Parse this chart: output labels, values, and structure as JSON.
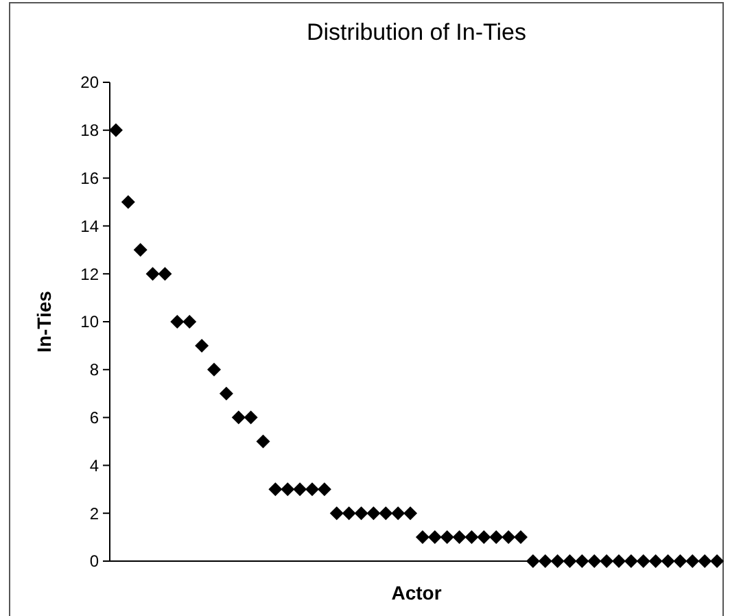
{
  "chart_data": {
    "type": "scatter",
    "title": "Distribution of In-Ties",
    "xlabel": "Actor",
    "ylabel": "In-Ties",
    "categories": [
      null,
      null,
      null,
      null,
      null,
      null,
      null,
      null,
      null,
      null,
      null,
      null,
      null,
      null,
      null,
      null,
      null,
      null,
      null,
      null,
      null,
      null,
      null,
      null,
      null,
      null,
      null,
      null,
      null,
      null,
      null,
      null,
      null,
      null,
      null,
      null,
      null,
      null,
      null,
      null,
      null,
      null,
      null,
      null,
      null,
      null,
      null,
      null,
      null,
      null
    ],
    "series": [
      {
        "color": "#000000",
        "values": [
          18,
          15,
          13,
          12,
          12,
          10,
          10,
          9,
          8,
          7,
          6,
          6,
          5,
          3,
          3,
          3,
          3,
          3,
          2,
          2,
          2,
          2,
          2,
          2,
          2,
          1,
          1,
          1,
          1,
          1,
          1,
          1,
          1,
          1,
          0,
          0,
          0,
          0,
          0,
          0,
          0,
          0,
          0,
          0,
          0,
          0,
          0,
          0,
          0,
          0
        ]
      }
    ],
    "ylim": [
      0,
      20
    ],
    "yticks": [
      0,
      2,
      4,
      6,
      8,
      10,
      12,
      14,
      16,
      18,
      20
    ],
    "marker": "diamond",
    "tick_labels": "y",
    "grid": false
  }
}
